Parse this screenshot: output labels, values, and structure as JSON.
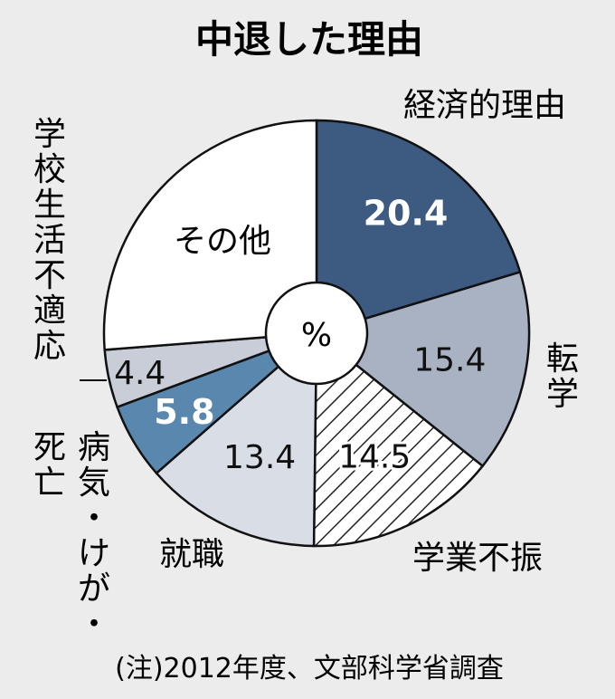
{
  "chart_data": {
    "type": "donut",
    "title": "中退した理由",
    "center_label": "%",
    "note": "(注)2012年度、文部科学省調査",
    "slices": [
      {
        "label": "経済的理由",
        "value": 20.4,
        "value_text": "20.4",
        "fill": "#3d5a80"
      },
      {
        "label": "転学",
        "value": 15.4,
        "value_text": "15.4",
        "fill": "#a9b2c3"
      },
      {
        "label": "学業不振",
        "value": 14.5,
        "value_text": "14.5",
        "fill": "hatch"
      },
      {
        "label": "就職",
        "value": 13.4,
        "value_text": "13.4",
        "fill": "#d9dde6"
      },
      {
        "label": "病気・けが・死亡",
        "value": 5.8,
        "value_text": "5.8",
        "fill": "#5a87ad"
      },
      {
        "label": "学校生活不適応",
        "value": 4.4,
        "value_text": "4.4",
        "fill": "#c9cdd8"
      },
      {
        "label": "その他",
        "value": 26.3,
        "value_text": "",
        "fill": "#ffffff"
      }
    ]
  }
}
